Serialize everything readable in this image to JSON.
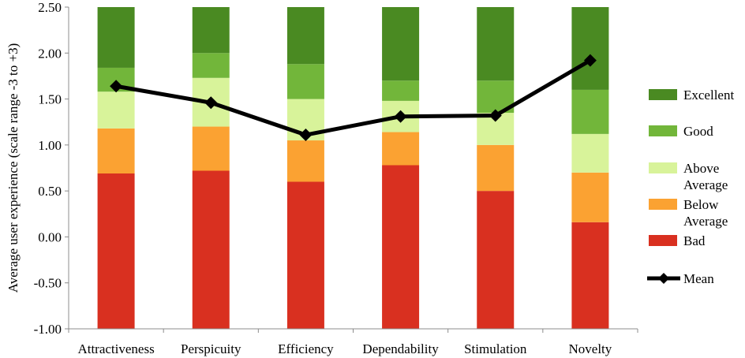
{
  "chart_data": {
    "type": "bar",
    "stacked": true,
    "title": "",
    "xlabel": "",
    "ylabel": "Average user experience (scale range -3 to +3)",
    "ylim": [
      -1.0,
      2.5
    ],
    "yticks": [
      "2.50",
      "2.00",
      "1.50",
      "1.00",
      "0.50",
      "0.00",
      "-0.50",
      "-1.00"
    ],
    "ytick_values": [
      2.5,
      2.0,
      1.5,
      1.0,
      0.5,
      0.0,
      -0.5,
      -1.0
    ],
    "categories": [
      "Attractiveness",
      "Perspicuity",
      "Efficiency",
      "Dependability",
      "Stimulation",
      "Novelty"
    ],
    "bands": [
      {
        "name": "Bad",
        "color": "#d93020",
        "bounds": [
          [
            -1.0,
            0.69
          ],
          [
            -1.0,
            0.72
          ],
          [
            -1.0,
            0.6
          ],
          [
            -1.0,
            0.78
          ],
          [
            -1.0,
            0.5
          ],
          [
            -1.0,
            0.16
          ]
        ]
      },
      {
        "name": "Below Average",
        "color": "#fba232",
        "bounds": [
          [
            0.69,
            1.18
          ],
          [
            0.72,
            1.2
          ],
          [
            0.6,
            1.05
          ],
          [
            0.78,
            1.14
          ],
          [
            0.5,
            1.0
          ],
          [
            0.16,
            0.7
          ]
        ]
      },
      {
        "name": "Above Average",
        "color": "#d8f39a",
        "bounds": [
          [
            1.18,
            1.58
          ],
          [
            1.2,
            1.73
          ],
          [
            1.05,
            1.5
          ],
          [
            1.14,
            1.48
          ],
          [
            1.0,
            1.35
          ],
          [
            0.7,
            1.12
          ]
        ]
      },
      {
        "name": "Good",
        "color": "#72b63a",
        "bounds": [
          [
            1.58,
            1.84
          ],
          [
            1.73,
            2.0
          ],
          [
            1.5,
            1.88
          ],
          [
            1.48,
            1.7
          ],
          [
            1.35,
            1.7
          ],
          [
            1.12,
            1.6
          ]
        ]
      },
      {
        "name": "Excellent",
        "color": "#4a8a22",
        "bounds": [
          [
            1.84,
            2.5
          ],
          [
            2.0,
            2.5
          ],
          [
            1.88,
            2.5
          ],
          [
            1.7,
            2.5
          ],
          [
            1.7,
            2.5
          ],
          [
            1.6,
            2.5
          ]
        ]
      }
    ],
    "series": [
      {
        "name": "Mean",
        "type": "line",
        "color": "#000000",
        "values": [
          1.64,
          1.46,
          1.11,
          1.31,
          1.32,
          1.92
        ]
      }
    ],
    "legend": {
      "position": "right",
      "entries": [
        {
          "lines": [
            "Excellent"
          ],
          "color": "#4a8a22",
          "kind": "box"
        },
        {
          "lines": [
            "Good"
          ],
          "color": "#72b63a",
          "kind": "box"
        },
        {
          "lines": [
            "Above",
            "Average"
          ],
          "color": "#d8f39a",
          "kind": "box"
        },
        {
          "lines": [
            "Below",
            "Average"
          ],
          "color": "#fba232",
          "kind": "box"
        },
        {
          "lines": [
            "Bad"
          ],
          "color": "#d93020",
          "kind": "box"
        },
        {
          "lines": [
            "Mean"
          ],
          "color": "#000000",
          "kind": "line"
        }
      ]
    },
    "grid": false
  }
}
